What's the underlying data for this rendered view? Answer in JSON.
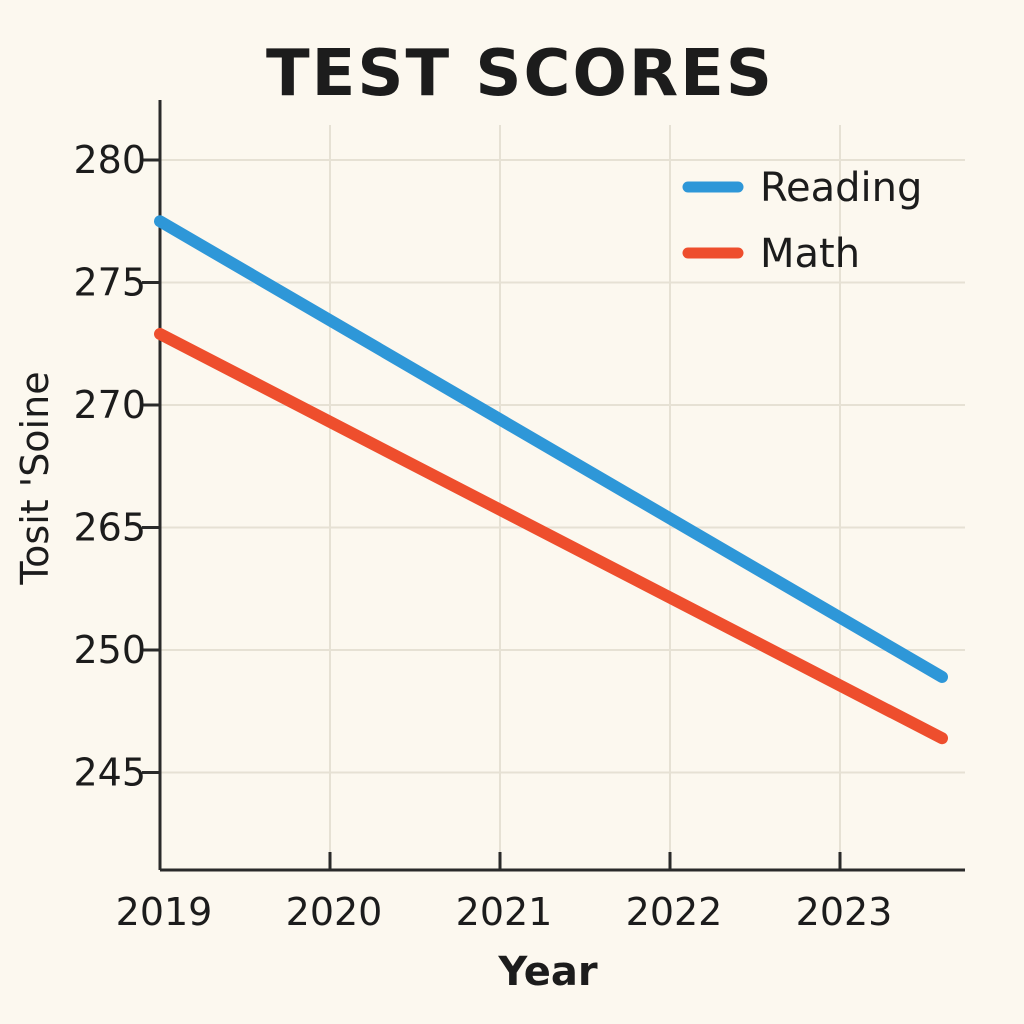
{
  "chart_data": {
    "type": "line",
    "title": "TEST SCORES",
    "xlabel": "Year",
    "ylabel": "Tosit 'Soine",
    "x_ticks": [
      "2019",
      "2020",
      "2021",
      "2022",
      "2023"
    ],
    "y_ticks": [
      "280",
      "275",
      "270",
      "265",
      "250",
      "245"
    ],
    "series": [
      {
        "name": "Reading",
        "color": "#2e97d8",
        "x": [
          "2019",
          "2023.6"
        ],
        "y": [
          277.5,
          248.9
        ]
      },
      {
        "name": "Math",
        "color": "#ee4e2d",
        "x": [
          "2019",
          "2023.6"
        ],
        "y": [
          272.9,
          246.4
        ]
      }
    ],
    "legend": "top-right",
    "grid": true
  }
}
